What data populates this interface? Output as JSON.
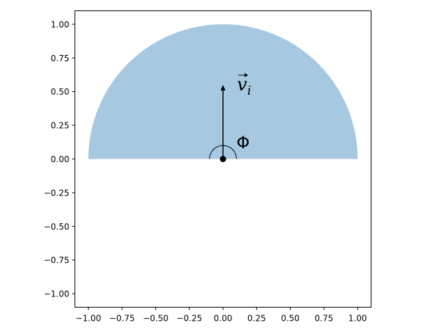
{
  "chart_data": {
    "type": "area",
    "title": "",
    "xlabel": "",
    "ylabel": "",
    "xlim": [
      -1.1,
      1.1
    ],
    "ylim": [
      -1.1,
      1.1
    ],
    "grid": false,
    "x_ticks": [
      -1.0,
      -0.75,
      -0.5,
      -0.25,
      0.0,
      0.25,
      0.5,
      0.75,
      1.0
    ],
    "y_ticks": [
      -1.0,
      -0.75,
      -0.5,
      -0.25,
      0.0,
      0.25,
      0.5,
      0.75,
      1.0
    ],
    "x_tick_labels": [
      "−1.00",
      "−0.75",
      "−0.50",
      "−0.25",
      "0.00",
      "0.25",
      "0.50",
      "0.75",
      "1.00"
    ],
    "y_tick_labels": [
      "−1.00",
      "−0.75",
      "−0.50",
      "−0.25",
      "0.00",
      "0.25",
      "0.50",
      "0.75",
      "1.00"
    ],
    "semicircle": {
      "center": [
        0,
        0
      ],
      "radius": 1.0,
      "theta_start_deg": 0,
      "theta_end_deg": 180,
      "color": "#a6c8e0"
    },
    "vector": {
      "start": [
        0,
        0
      ],
      "end": [
        0,
        0.55
      ],
      "label_base": "v",
      "label_sub": "i",
      "color": "#000000"
    },
    "angle_arc": {
      "center": [
        0,
        0
      ],
      "radius": 0.1,
      "theta_start_deg": 0,
      "theta_end_deg": 180,
      "label": "Φ"
    },
    "origin_point": [
      0,
      0
    ]
  }
}
